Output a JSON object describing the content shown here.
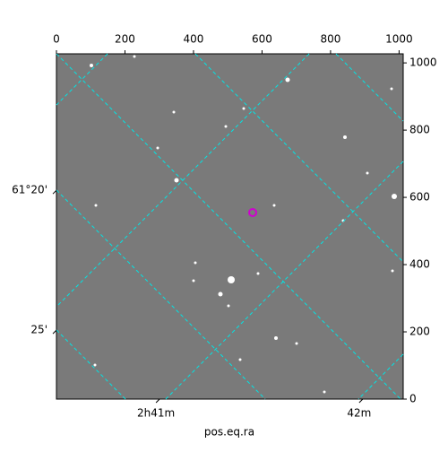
{
  "chart_data": {
    "type": "image",
    "xlabel": "pos.eq.ra",
    "xlim": [
      0,
      1012
    ],
    "xticks": [
      0,
      200,
      400,
      600,
      800,
      1000
    ],
    "ylim": [
      0,
      1027
    ],
    "yticks": [
      0,
      200,
      400,
      600,
      800,
      1000
    ],
    "bottom_ticks": [
      {
        "value": 301,
        "label": "2h41m"
      },
      {
        "value": 894,
        "label": "42m"
      }
    ],
    "left_ticks": [
      {
        "value": 621,
        "label": "61°20'"
      },
      {
        "value": 205,
        "label": "25'"
      }
    ]
  }
}
